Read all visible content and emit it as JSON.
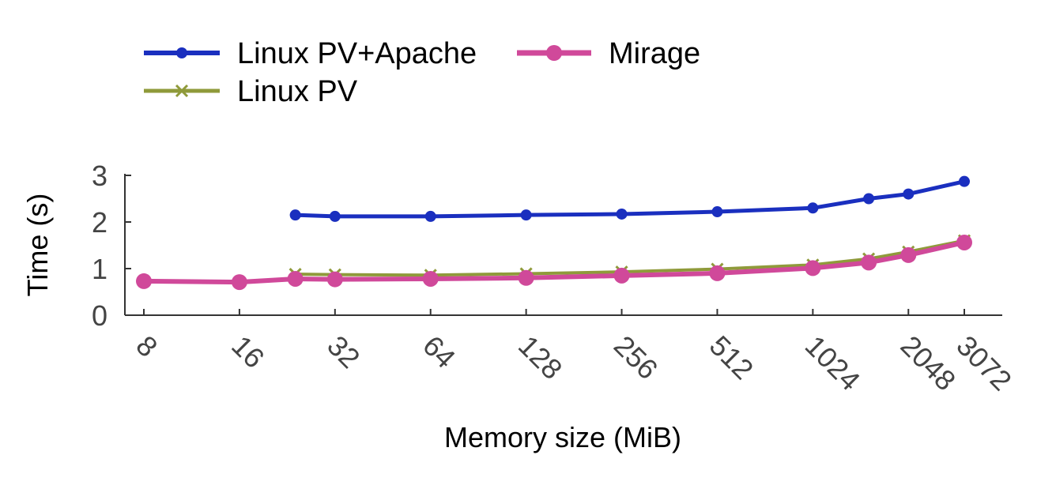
{
  "chart_data": {
    "type": "line",
    "xlabel": "Memory size (MiB)",
    "ylabel": "Time (s)",
    "x_scale": "log2",
    "x_ticks": [
      "8",
      "16",
      "32",
      "64",
      "128",
      "256",
      "512",
      "1024",
      "2048",
      "3072"
    ],
    "y_ticks": [
      "0",
      "1",
      "2",
      "3"
    ],
    "ylim": [
      0,
      3
    ],
    "grid": false,
    "legend_position": "top-left",
    "series": [
      {
        "name": "Linux PV+Apache",
        "color": "#1a2fbf",
        "marker": "dot",
        "points": [
          [
            24,
            2.15
          ],
          [
            32,
            2.12
          ],
          [
            64,
            2.12
          ],
          [
            128,
            2.15
          ],
          [
            256,
            2.17
          ],
          [
            512,
            2.22
          ],
          [
            1024,
            2.3
          ],
          [
            1536,
            2.5
          ],
          [
            2048,
            2.6
          ],
          [
            3072,
            2.87
          ]
        ]
      },
      {
        "name": "Linux PV",
        "color": "#8f9a3a",
        "marker": "x",
        "points": [
          [
            24,
            0.88
          ],
          [
            32,
            0.87
          ],
          [
            64,
            0.86
          ],
          [
            128,
            0.89
          ],
          [
            256,
            0.93
          ],
          [
            512,
            0.99
          ],
          [
            1024,
            1.08
          ],
          [
            1536,
            1.21
          ],
          [
            2048,
            1.36
          ],
          [
            3072,
            1.6
          ]
        ]
      },
      {
        "name": "Mirage",
        "color": "#d0499a",
        "marker": "big-dot",
        "points": [
          [
            8,
            0.73
          ],
          [
            16,
            0.71
          ],
          [
            24,
            0.78
          ],
          [
            32,
            0.77
          ],
          [
            64,
            0.78
          ],
          [
            128,
            0.8
          ],
          [
            256,
            0.85
          ],
          [
            512,
            0.9
          ],
          [
            1024,
            1.01
          ],
          [
            1536,
            1.13
          ],
          [
            2048,
            1.29
          ],
          [
            3072,
            1.56
          ]
        ]
      }
    ]
  }
}
